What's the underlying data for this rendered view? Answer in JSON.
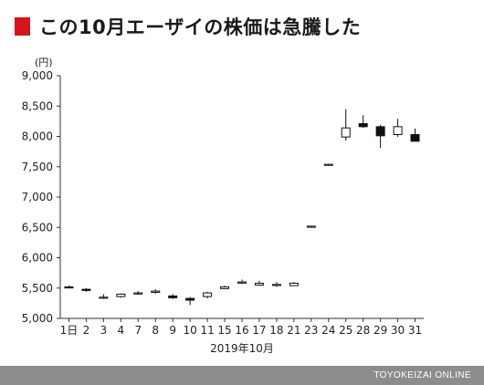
{
  "title": "この10月エーザイの株価は急騰した",
  "credit": "TOYOKEIZAI ONLINE",
  "colors": {
    "accent": "#d7141a",
    "footer_bg": "#8c8c8c",
    "axis": "#333333",
    "grid": "#e3e3e3",
    "candle": "#111111",
    "hollow_fill": "#ffffff"
  },
  "chart_data": {
    "type": "candlestick",
    "title": "この10月エーザイの株価は急騰した",
    "unit_label": "(円)",
    "xlabel": "2019年10月",
    "ylim": [
      5000,
      9000
    ],
    "yticks": [
      5000,
      5500,
      6000,
      6500,
      7000,
      7500,
      8000,
      8500,
      9000
    ],
    "ytick_labels": [
      "5,000",
      "5,500",
      "6,000",
      "6,500",
      "7,000",
      "7,500",
      "8,000",
      "8,500",
      "9,000"
    ],
    "grid": false,
    "categories": [
      "1日",
      "2",
      "3",
      "4",
      "7",
      "8",
      "9",
      "10",
      "11",
      "15",
      "16",
      "17",
      "18",
      "21",
      "23",
      "24",
      "25",
      "28",
      "29",
      "30",
      "31"
    ],
    "series": [
      {
        "open": [
          5520,
          5480,
          5340,
          5360,
          5410,
          5430,
          5370,
          5330,
          5360,
          5490,
          5600,
          5550,
          5560,
          5540,
          6520,
          7540,
          7990,
          8210,
          8160,
          8030,
          8030
        ],
        "high": [
          5540,
          5500,
          5400,
          5410,
          5450,
          5480,
          5400,
          5350,
          5440,
          5540,
          5640,
          5620,
          5600,
          5600,
          6530,
          7550,
          8450,
          8350,
          8190,
          8290,
          8130
        ],
        "low": [
          5500,
          5440,
          5320,
          5340,
          5390,
          5410,
          5320,
          5220,
          5330,
          5480,
          5570,
          5540,
          5520,
          5540,
          6510,
          7530,
          7930,
          8140,
          7810,
          7990,
          7920
        ],
        "close": [
          5510,
          5460,
          5350,
          5400,
          5420,
          5450,
          5340,
          5300,
          5420,
          5520,
          5600,
          5580,
          5560,
          5580,
          6520,
          7540,
          8140,
          8160,
          8010,
          8160,
          7920
        ]
      }
    ]
  }
}
